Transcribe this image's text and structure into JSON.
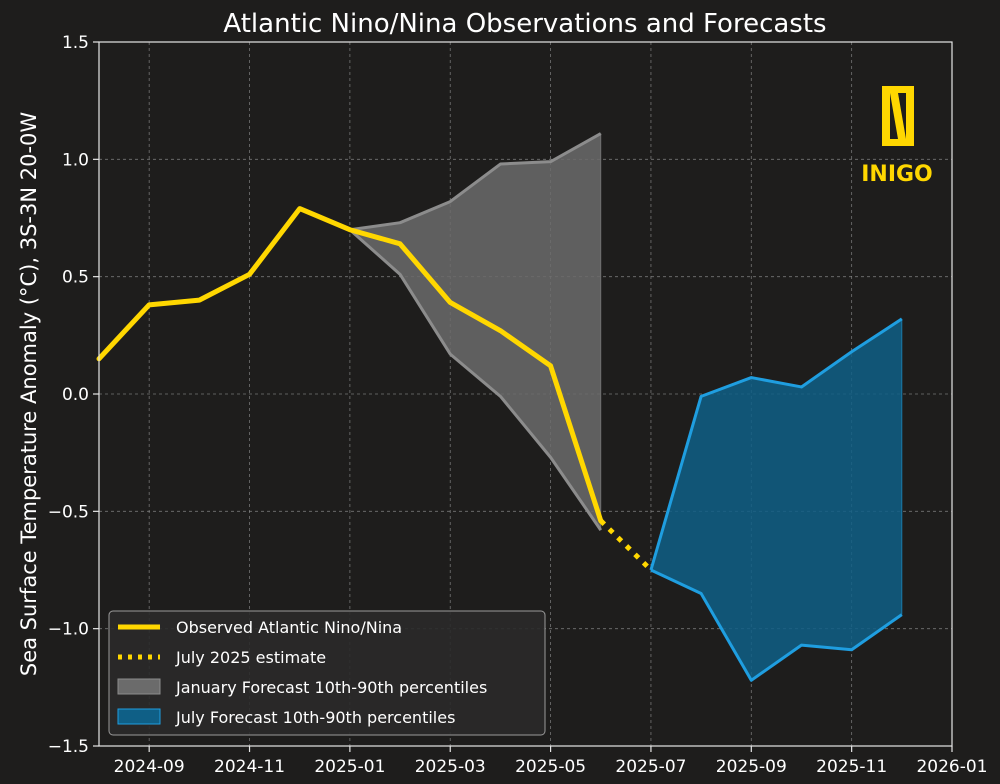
{
  "chart_data": {
    "type": "line",
    "title": "Atlantic Nino/Nina Observations and Forecasts",
    "ylabel": "Sea Surface Temperature Anomaly (°C), 3S-3N 20-0W",
    "xlabel": "",
    "xlim": [
      "2024-08",
      "2026-01"
    ],
    "ylim": [
      -1.5,
      1.5
    ],
    "x_ticks": [
      "2024-09",
      "2024-11",
      "2025-01",
      "2025-03",
      "2025-05",
      "2025-07",
      "2025-09",
      "2025-11",
      "2026-01"
    ],
    "y_ticks": [
      "−1.5",
      "−1.0",
      "−0.5",
      "0.0",
      "0.5",
      "1.0",
      "1.5"
    ],
    "grid": true,
    "legend_position": "bottom-left",
    "series": [
      {
        "name": "Observed Atlantic Nino/Nina",
        "kind": "line",
        "style": "solid",
        "color": "#ffd700",
        "x": [
          "2024-08",
          "2024-09",
          "2024-10",
          "2024-11",
          "2024-12",
          "2025-01",
          "2025-02",
          "2025-03",
          "2025-04",
          "2025-05",
          "2025-06"
        ],
        "y": [
          0.15,
          0.38,
          0.4,
          0.51,
          0.79,
          0.7,
          0.64,
          0.39,
          0.27,
          0.12,
          -0.54
        ]
      },
      {
        "name": "July 2025 estimate",
        "kind": "line",
        "style": "dotted",
        "color": "#ffd700",
        "x": [
          "2025-06",
          "2025-07"
        ],
        "y": [
          -0.54,
          -0.75
        ]
      },
      {
        "name": "January Forecast 10th-90th percentiles",
        "kind": "band",
        "fill": "#6b6b6b",
        "edge": "#8c8c8c",
        "x": [
          "2025-01",
          "2025-02",
          "2025-03",
          "2025-04",
          "2025-05",
          "2025-06"
        ],
        "lower": [
          0.7,
          0.51,
          0.17,
          -0.01,
          -0.27,
          -0.58
        ],
        "upper": [
          0.7,
          0.73,
          0.82,
          0.98,
          0.99,
          1.11
        ]
      },
      {
        "name": "July Forecast 10th-90th percentiles",
        "kind": "band",
        "fill": "#0f5f86",
        "edge": "#1f9ee0",
        "x": [
          "2025-07",
          "2025-08",
          "2025-09",
          "2025-10",
          "2025-11",
          "2025-12"
        ],
        "lower": [
          -0.75,
          -0.85,
          -1.22,
          -1.07,
          -1.09,
          -0.94
        ],
        "upper": [
          -0.75,
          -0.01,
          0.07,
          0.03,
          0.18,
          0.32
        ]
      }
    ]
  },
  "logo": {
    "text": "INIGO",
    "color": "#ffd700"
  }
}
